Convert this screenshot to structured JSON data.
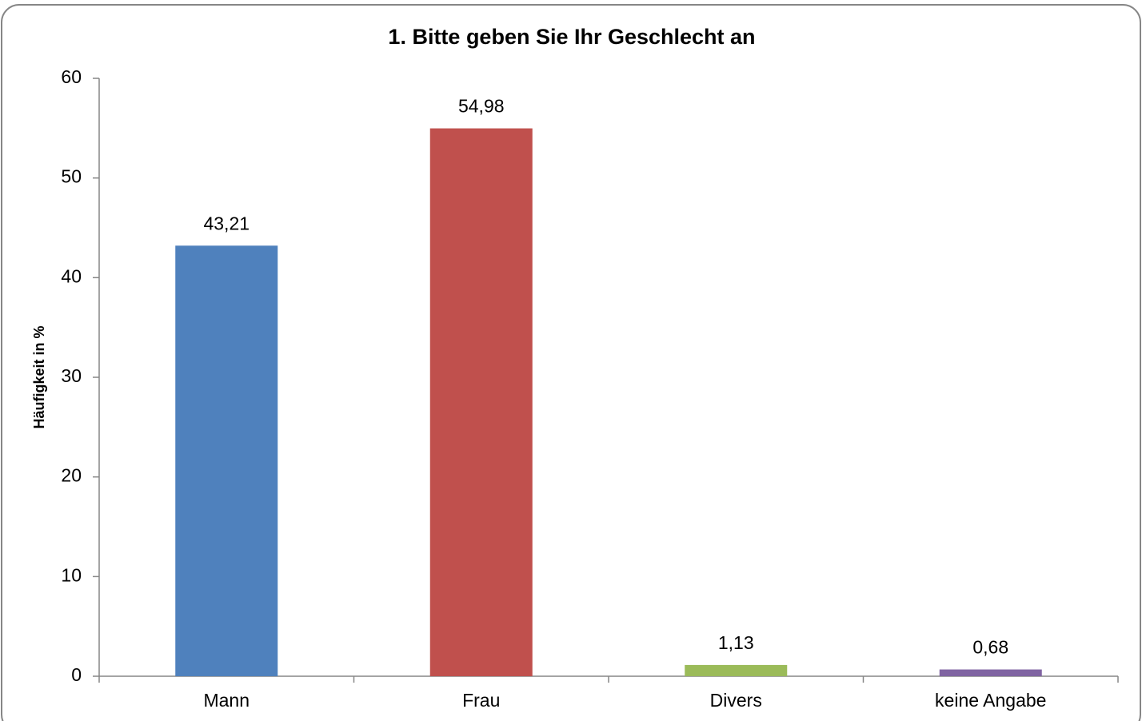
{
  "chart_data": {
    "type": "bar",
    "title": "1. Bitte geben Sie Ihr Geschlecht an",
    "ylabel": "Häufigkeit in %",
    "categories": [
      "Mann",
      "Frau",
      "Divers",
      "keine Angabe"
    ],
    "values": [
      43.21,
      54.98,
      1.13,
      0.68
    ],
    "value_labels": [
      "43,21",
      "54,98",
      "1,13",
      "0,68"
    ],
    "colors": [
      "#4f81bd",
      "#c0504d",
      "#9bbb59",
      "#8064a2"
    ],
    "ylim": [
      0,
      60
    ],
    "yticks": [
      0,
      10,
      20,
      30,
      40,
      50,
      60
    ],
    "grid": false
  }
}
